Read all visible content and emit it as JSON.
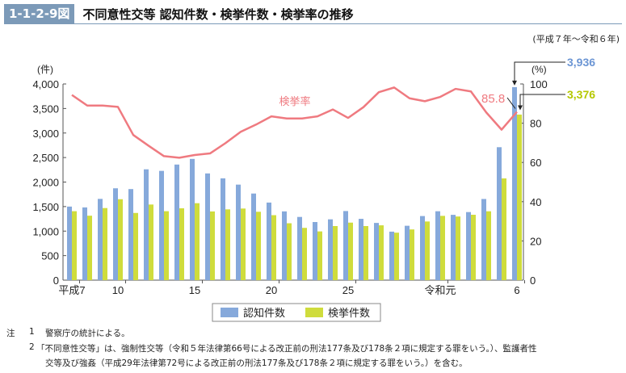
{
  "header": {
    "figure_number": "1-1-2-9図",
    "title": "不同意性交等 認知件数・検挙件数・検挙率の推移"
  },
  "period": "(平成７年～令和６年)",
  "chart_data": {
    "type": "bar+line",
    "title": "不同意性交等 認知件数・検挙件数・検挙率の推移",
    "left_axis": {
      "label": "(件)",
      "ylim": [
        0,
        4000
      ],
      "ticks": [
        "0",
        "500",
        "1,000",
        "1,500",
        "2,000",
        "2,500",
        "3,000",
        "3,500",
        "4,000"
      ]
    },
    "right_axis": {
      "label": "(%)",
      "ylim": [
        0,
        100
      ],
      "ticks": [
        "0",
        "20",
        "40",
        "60",
        "80",
        "100"
      ]
    },
    "x_tick_labels": [
      {
        "index": 0,
        "label": "平成7"
      },
      {
        "index": 3,
        "label": "10"
      },
      {
        "index": 8,
        "label": "15"
      },
      {
        "index": 13,
        "label": "20"
      },
      {
        "index": 18,
        "label": "25"
      },
      {
        "index": 24,
        "label": "令和元"
      },
      {
        "index": 29,
        "label": "6"
      }
    ],
    "categories": [
      "H7",
      "H8",
      "H9",
      "H10",
      "H11",
      "H12",
      "H13",
      "H14",
      "H15",
      "H16",
      "H17",
      "H18",
      "H19",
      "H20",
      "H21",
      "H22",
      "H23",
      "H24",
      "H25",
      "H26",
      "H27",
      "H28",
      "H29",
      "H30",
      "R1",
      "R2",
      "R3",
      "R4",
      "R5",
      "R6"
    ],
    "series": [
      {
        "name": "認知件数",
        "type": "bar",
        "axis": "left",
        "color": "#86a9db",
        "values": [
          1500,
          1483,
          1657,
          1873,
          1857,
          2260,
          2228,
          2357,
          2472,
          2176,
          2076,
          1948,
          1766,
          1582,
          1402,
          1289,
          1185,
          1240,
          1409,
          1250,
          1167,
          989,
          1109,
          1307,
          1405,
          1332,
          1388,
          1655,
          2711,
          3936
        ]
      },
      {
        "name": "検挙件数",
        "type": "bar",
        "axis": "left",
        "color": "#cfdc3c",
        "values": [
          1406,
          1314,
          1470,
          1650,
          1370,
          1542,
          1406,
          1465,
          1569,
          1401,
          1443,
          1460,
          1394,
          1325,
          1160,
          1066,
          994,
          1103,
          1173,
          1103,
          1118,
          968,
          1034,
          1196,
          1311,
          1298,
          1333,
          1404,
          2075,
          3376
        ]
      },
      {
        "name": "検挙率",
        "type": "line",
        "axis": "right",
        "color": "#ef7a80",
        "values": [
          94.4,
          89.0,
          89.0,
          88.3,
          74.0,
          68.5,
          63.2,
          62.4,
          63.8,
          64.6,
          69.8,
          75.6,
          79.3,
          83.5,
          82.4,
          82.4,
          83.5,
          87.0,
          82.7,
          88.2,
          95.8,
          98.2,
          92.7,
          91.2,
          93.4,
          97.5,
          96.2,
          85.5,
          76.7,
          85.8
        ]
      }
    ],
    "annotations": {
      "last_recognized": "3,936",
      "last_cleared": "3,376",
      "last_rate": "85.8",
      "line_label": "検挙率"
    },
    "legend": {
      "position": "bottom",
      "items": [
        "認知件数",
        "検挙件数"
      ]
    }
  },
  "notes": {
    "prefix": "注",
    "n1": "1",
    "line1": "警察庁の統計による。",
    "n2": "2",
    "line2": "「不同意性交等」は、強制性交等（令和５年法律第66号による改正前の刑法177条及び178条２項に規定する罪をいう。）、監護者性",
    "line3": "交等及び強姦（平成29年法律第72号による改正前の刑法177条及び178条２項に規定する罪をいう。）を含む。"
  }
}
